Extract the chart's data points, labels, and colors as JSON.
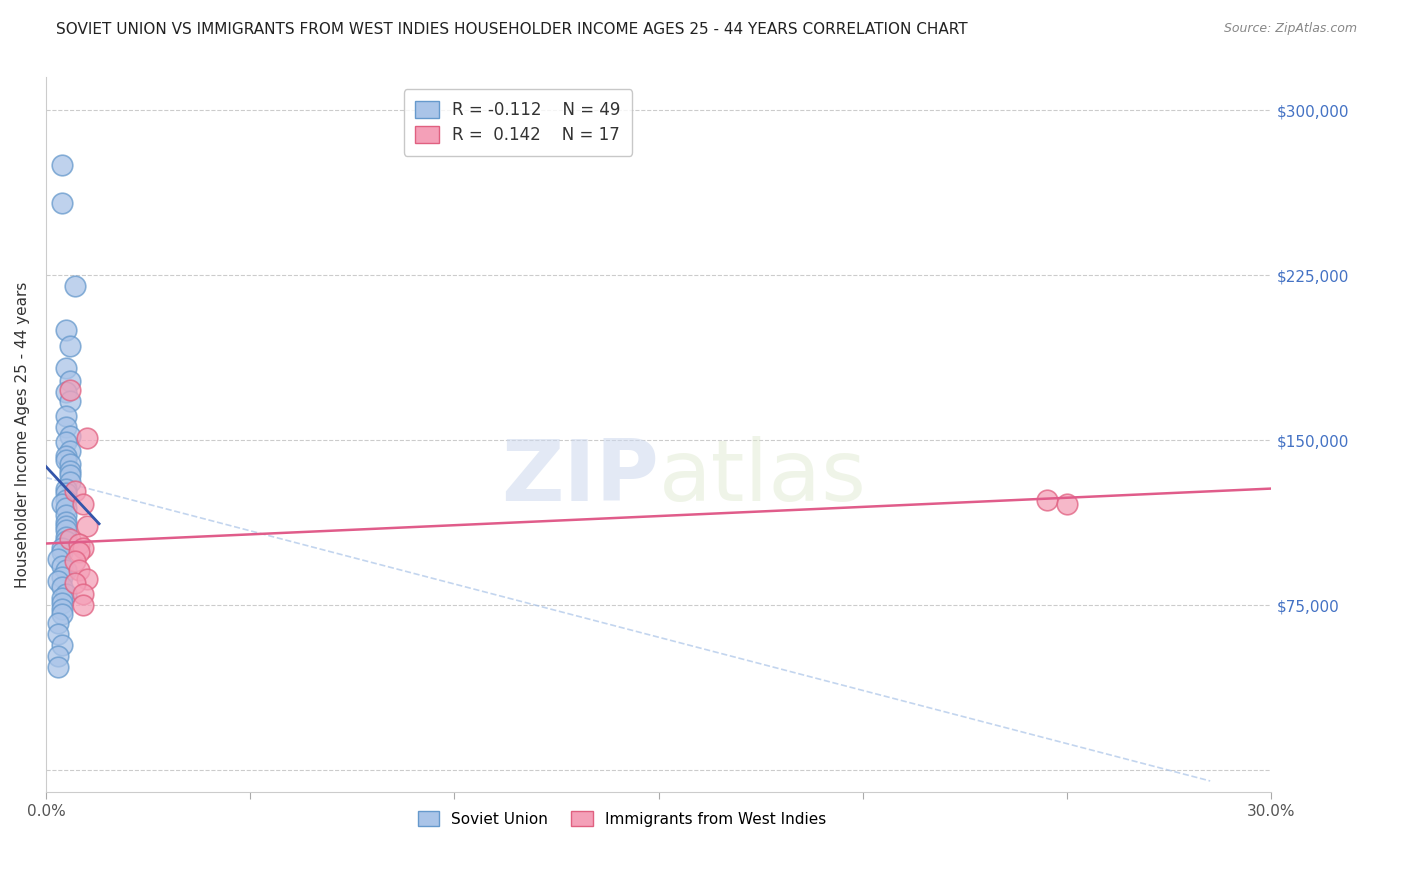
{
  "title": "SOVIET UNION VS IMMIGRANTS FROM WEST INDIES HOUSEHOLDER INCOME AGES 25 - 44 YEARS CORRELATION CHART",
  "source": "Source: ZipAtlas.com",
  "ylabel_label": "Householder Income Ages 25 - 44 years",
  "xlim": [
    0.0,
    0.3
  ],
  "ylim": [
    -10000,
    315000
  ],
  "yticks": [
    0,
    75000,
    150000,
    225000,
    300000
  ],
  "ytick_labels": [
    "",
    "$75,000",
    "$150,000",
    "$225,000",
    "$300,000"
  ],
  "xticks": [
    0.0,
    0.05,
    0.1,
    0.15,
    0.2,
    0.25,
    0.3
  ],
  "xtick_labels": [
    "0.0%",
    "",
    "",
    "",
    "",
    "",
    "30.0%"
  ],
  "background_color": "#ffffff",
  "grid_color": "#cccccc",
  "legend_R_blue": "-0.112",
  "legend_N_blue": "49",
  "legend_R_pink": "0.142",
  "legend_N_pink": "17",
  "soviet_x": [
    0.004,
    0.004,
    0.007,
    0.005,
    0.006,
    0.005,
    0.006,
    0.005,
    0.006,
    0.005,
    0.005,
    0.006,
    0.005,
    0.006,
    0.005,
    0.005,
    0.006,
    0.006,
    0.006,
    0.006,
    0.005,
    0.005,
    0.005,
    0.004,
    0.005,
    0.005,
    0.005,
    0.005,
    0.005,
    0.005,
    0.005,
    0.004,
    0.004,
    0.003,
    0.004,
    0.005,
    0.004,
    0.003,
    0.004,
    0.005,
    0.004,
    0.004,
    0.004,
    0.004,
    0.003,
    0.003,
    0.004,
    0.003,
    0.003
  ],
  "soviet_y": [
    275000,
    258000,
    220000,
    200000,
    193000,
    183000,
    177000,
    172000,
    168000,
    161000,
    156000,
    152000,
    149000,
    145000,
    143000,
    141000,
    139000,
    136000,
    134000,
    131000,
    128000,
    126000,
    123000,
    121000,
    119000,
    116000,
    113000,
    111000,
    109000,
    106000,
    104000,
    101000,
    99000,
    96000,
    93000,
    91000,
    88000,
    86000,
    83000,
    80000,
    78000,
    76000,
    73000,
    71000,
    67000,
    62000,
    57000,
    52000,
    47000
  ],
  "westindies_x": [
    0.006,
    0.01,
    0.007,
    0.009,
    0.01,
    0.006,
    0.008,
    0.009,
    0.008,
    0.007,
    0.008,
    0.01,
    0.007,
    0.009,
    0.009,
    0.245,
    0.25
  ],
  "westindies_y": [
    173000,
    151000,
    127000,
    121000,
    111000,
    105000,
    103000,
    101000,
    99000,
    95000,
    91000,
    87000,
    85000,
    80000,
    75000,
    123000,
    121000
  ],
  "blue_line_x": [
    0.0,
    0.013
  ],
  "blue_line_y": [
    138000,
    112000
  ],
  "pink_line_x": [
    0.0,
    0.3
  ],
  "pink_line_y": [
    103000,
    128000
  ],
  "dash_line_x": [
    0.0,
    0.285
  ],
  "dash_line_y": [
    133000,
    -5000
  ],
  "blue_line_color": "#3355aa",
  "pink_line_color": "#e05c8a",
  "blue_dot_facecolor": "#aac4e8",
  "blue_dot_edgecolor": "#6699cc",
  "pink_dot_facecolor": "#f4a0b8",
  "pink_dot_edgecolor": "#e06080",
  "dashed_line_color": "#aac4e8",
  "ytick_color": "#4472c4",
  "xtick_color": "#555555"
}
